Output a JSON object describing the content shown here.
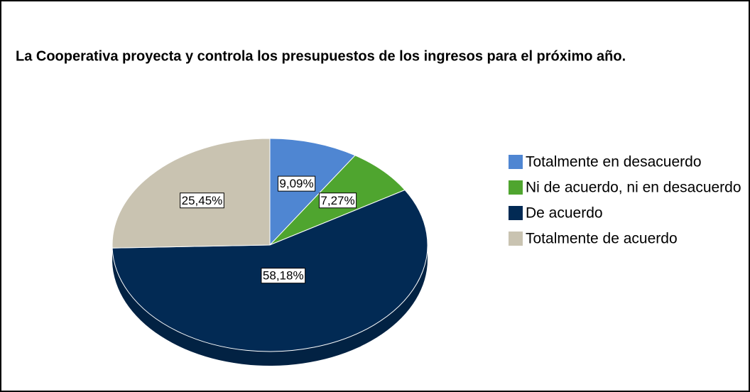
{
  "chart_data": {
    "type": "pie",
    "title": "La Cooperativa proyecta y controla los presupuestos de los ingresos para el próximo año.",
    "categories": [
      "Totalmente en desacuerdo",
      "Ni de acuerdo, ni en desacuerdo",
      "De acuerdo",
      "Totalmente de acuerdo"
    ],
    "values": [
      9.09,
      7.27,
      58.18,
      25.45
    ],
    "value_labels": [
      "9,09%",
      "7,27%",
      "58,18%",
      "25,45%"
    ],
    "colors": [
      "#4f86d2",
      "#4fa52f",
      "#022a54",
      "#c9c3b1"
    ]
  }
}
